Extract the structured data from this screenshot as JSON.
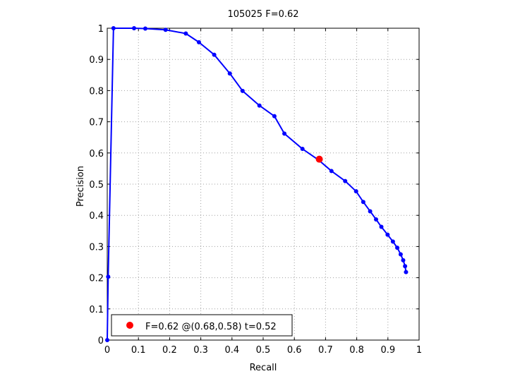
{
  "chart_data": {
    "type": "line",
    "title": "105025 F=0.62",
    "xlabel": "Recall",
    "ylabel": "Precision",
    "xlim": [
      0,
      1
    ],
    "ylim": [
      0,
      1
    ],
    "grid": true,
    "x_ticks": [
      "0",
      "0.1",
      "0.2",
      "0.3",
      "0.4",
      "0.5",
      "0.6",
      "0.7",
      "0.8",
      "0.9",
      "1"
    ],
    "y_ticks": [
      "0",
      "0.1",
      "0.2",
      "0.3",
      "0.4",
      "0.5",
      "0.6",
      "0.7",
      "0.8",
      "0.9",
      "1"
    ],
    "series": [
      {
        "color": "#0000ff",
        "x": [
          0.0,
          0.003,
          0.02,
          0.086,
          0.122,
          0.187,
          0.252,
          0.294,
          0.343,
          0.393,
          0.434,
          0.488,
          0.536,
          0.568,
          0.626,
          0.677,
          0.719,
          0.763,
          0.798,
          0.821,
          0.843,
          0.862,
          0.879,
          0.899,
          0.916,
          0.93,
          0.941,
          0.949,
          0.955,
          0.958
        ],
        "y": [
          0.0,
          0.203,
          1.0,
          1.0,
          0.999,
          0.995,
          0.983,
          0.955,
          0.915,
          0.855,
          0.799,
          0.752,
          0.718,
          0.662,
          0.613,
          0.578,
          0.542,
          0.51,
          0.477,
          0.443,
          0.413,
          0.387,
          0.363,
          0.338,
          0.316,
          0.296,
          0.275,
          0.256,
          0.237,
          0.218
        ]
      }
    ],
    "best_point": {
      "x": 0.68,
      "y": 0.58,
      "color": "#ff0000"
    },
    "legend": {
      "location": "bottom-left",
      "label": "F=0.62 @(0.68,0.58) t=0.52"
    }
  }
}
